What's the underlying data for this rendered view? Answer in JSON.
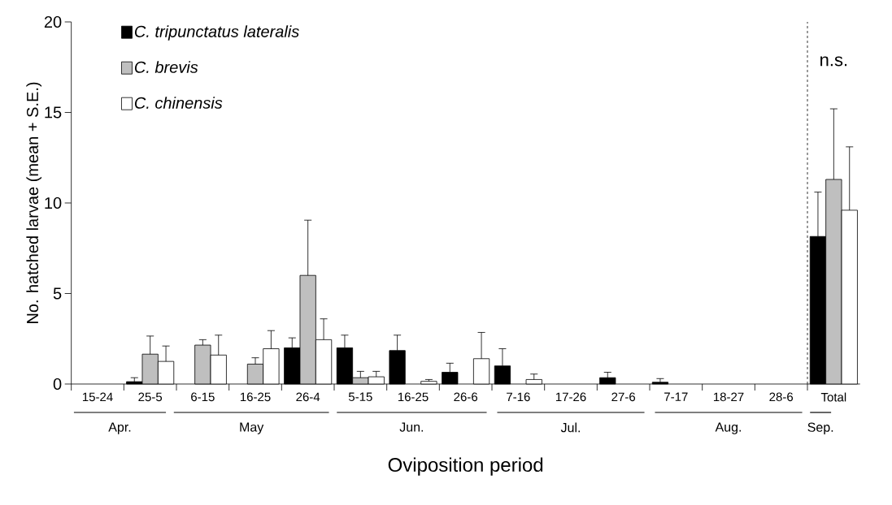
{
  "chart_data": {
    "type": "bar",
    "xlabel": "Oviposition period",
    "ylabel": "No. hatched larvae (mean + S.E.)",
    "categories": [
      "15-24",
      "25-5",
      "6-15",
      "16-25",
      "26-4",
      "5-15",
      "16-25",
      "26-6",
      "7-16",
      "17-26",
      "27-6",
      "7-17",
      "18-27",
      "28-6",
      "Total"
    ],
    "series": [
      {
        "name": "C. tripunctatus lateralis",
        "color": "#000000",
        "values": [
          null,
          0.13,
          null,
          null,
          2.0,
          2.0,
          1.85,
          0.65,
          1.0,
          null,
          0.35,
          0.1,
          null,
          null,
          8.15
        ],
        "errors": [
          null,
          [
            0.13,
            0.35
          ],
          null,
          null,
          [
            2.0,
            2.55
          ],
          [
            2.0,
            2.7
          ],
          [
            1.85,
            2.7
          ],
          [
            0.65,
            1.15
          ],
          [
            1.0,
            1.95
          ],
          null,
          [
            0.35,
            0.65
          ],
          [
            0.1,
            0.3
          ],
          null,
          null,
          [
            8.15,
            10.6
          ]
        ]
      },
      {
        "name": "C. brevis",
        "color": "#bfbfbf",
        "values": [
          null,
          1.65,
          2.15,
          1.1,
          6.0,
          0.35,
          null,
          null,
          null,
          null,
          null,
          null,
          null,
          null,
          11.3
        ],
        "errors": [
          null,
          [
            1.65,
            2.65
          ],
          [
            2.15,
            2.45
          ],
          [
            1.1,
            1.45
          ],
          [
            6.0,
            9.05
          ],
          [
            0.35,
            0.7
          ],
          null,
          null,
          null,
          null,
          null,
          null,
          null,
          null,
          [
            11.3,
            15.2
          ]
        ]
      },
      {
        "name": "C. chinensis",
        "color": "#ffffff",
        "values": [
          null,
          1.25,
          1.6,
          1.95,
          2.45,
          0.4,
          0.15,
          1.4,
          0.25,
          null,
          null,
          null,
          null,
          null,
          9.6
        ],
        "errors": [
          null,
          [
            1.25,
            2.1
          ],
          [
            1.6,
            2.7
          ],
          [
            1.95,
            2.95
          ],
          [
            2.45,
            3.6
          ],
          [
            0.4,
            0.7
          ],
          [
            0.15,
            0.25
          ],
          [
            1.4,
            2.85
          ],
          [
            0.25,
            0.55
          ],
          null,
          null,
          null,
          null,
          null,
          [
            9.6,
            13.1
          ]
        ]
      }
    ],
    "ylim": [
      0,
      20
    ],
    "yticks": [
      0,
      5,
      10,
      15,
      20
    ],
    "annotations": [
      "n.s.",
      "Apr.",
      "May",
      "Jun.",
      "Jul.",
      "Aug.",
      "Sep."
    ],
    "legend": "top left",
    "grid": false
  }
}
